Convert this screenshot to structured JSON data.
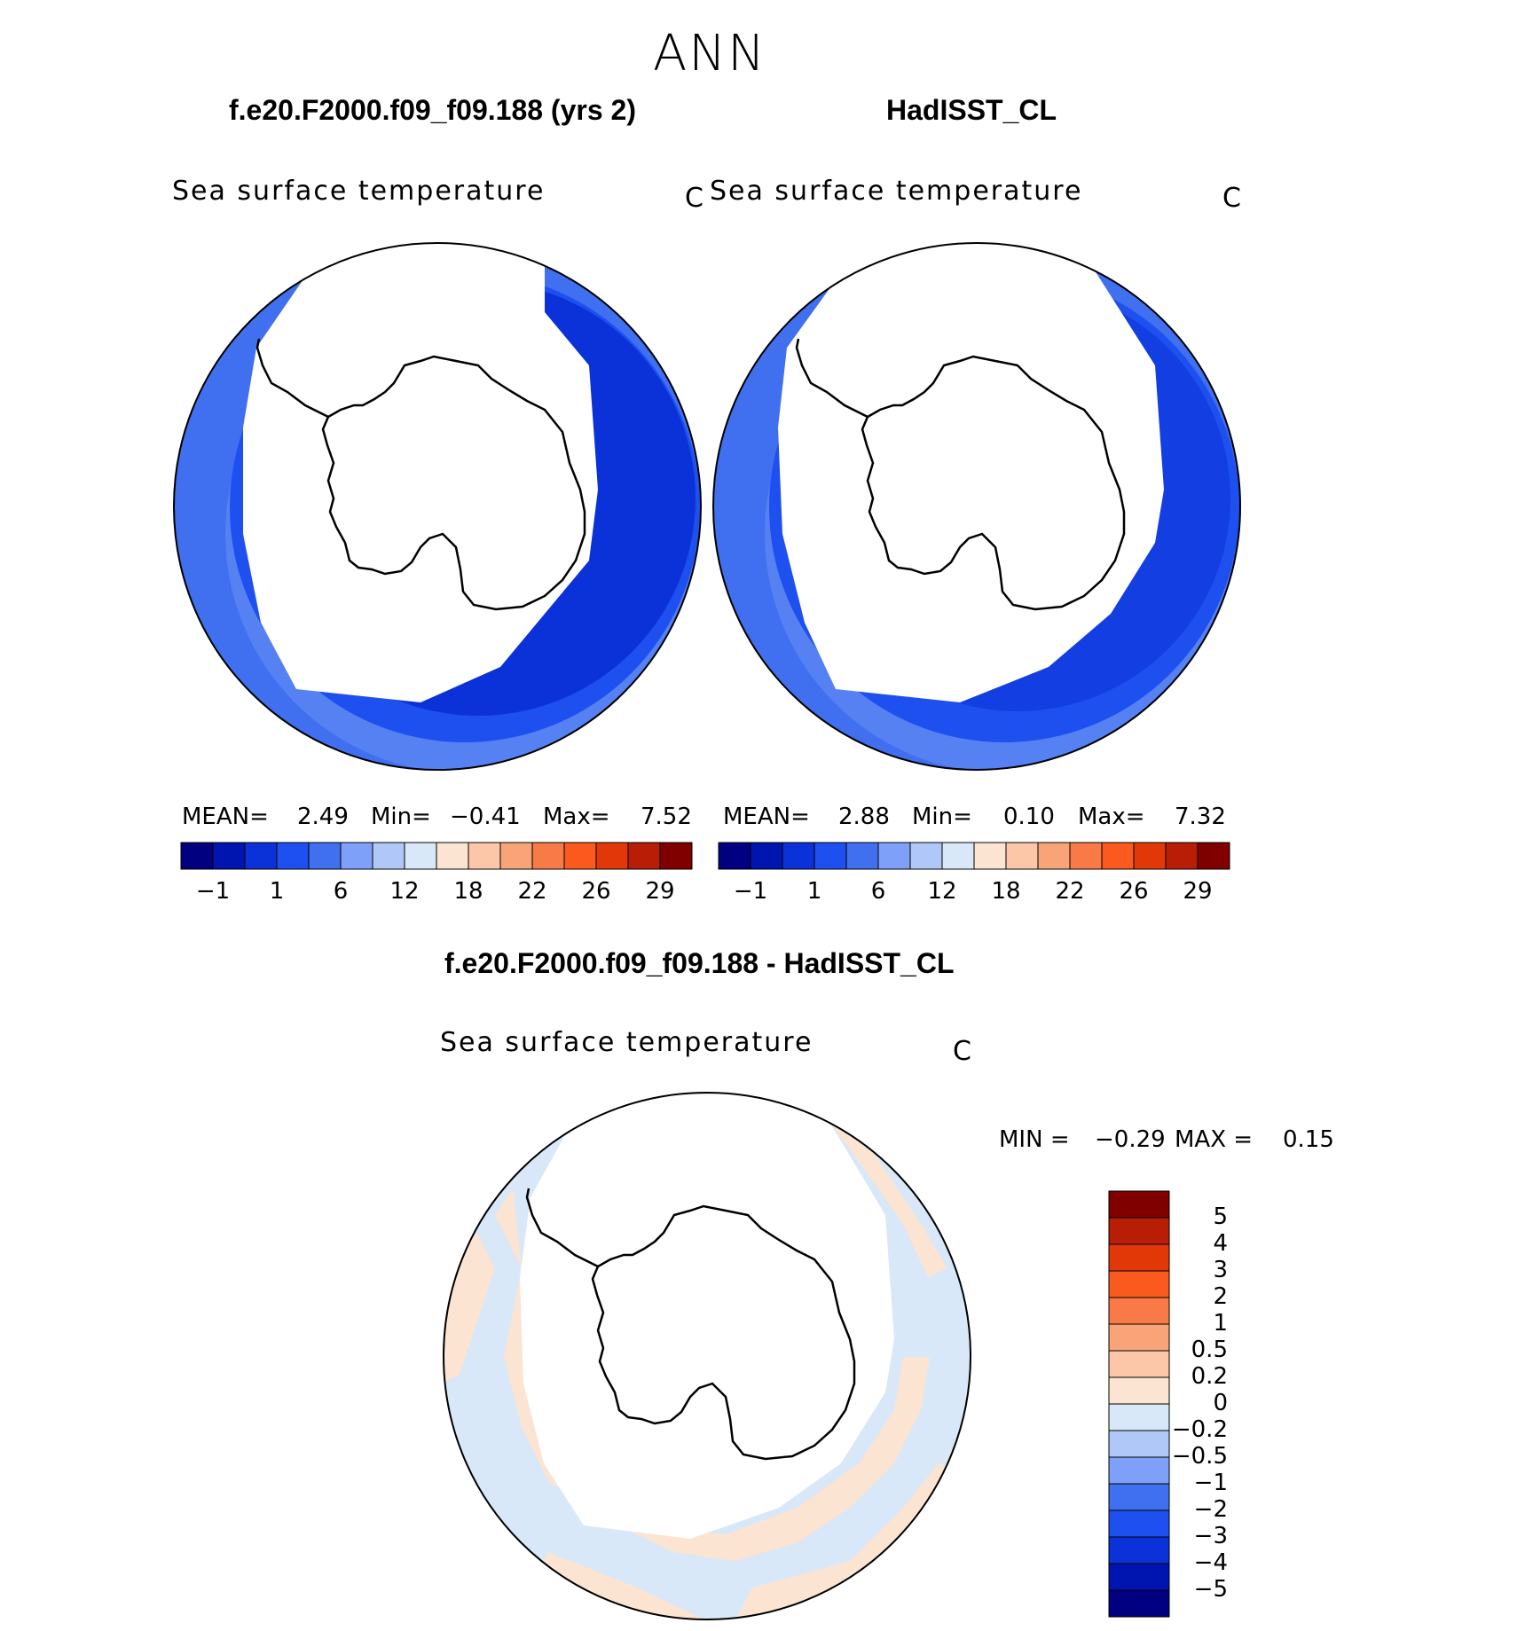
{
  "title": "ANN",
  "panels": [
    {
      "id": "model",
      "title": "f.e20.F2000.f09_f09.188 (yrs 2)",
      "variable": "Sea surface temperature",
      "units": "C",
      "stats": {
        "mean_label": "MEAN=",
        "mean": "2.49",
        "min_label": "Min=",
        "min": "−0.41",
        "max_label": "Max=",
        "max": "7.52"
      }
    },
    {
      "id": "obs",
      "title": "HadISST_CL",
      "variable": "Sea surface temperature",
      "units": "C",
      "stats": {
        "mean_label": "MEAN=",
        "mean": "2.88",
        "min_label": "Min=",
        "min": "0.10",
        "max_label": "Max=",
        "max": "7.32"
      }
    },
    {
      "id": "diff",
      "title": "f.e20.F2000.f09_f09.188 - HadISST_CL",
      "variable": "Sea surface temperature",
      "units": "C",
      "stats": {
        "min_label": "MIN =",
        "min": "−0.29",
        "max_label": "MAX =",
        "max": "0.15"
      }
    }
  ],
  "colorbar_sst": {
    "colors": [
      "#000080",
      "#0015b0",
      "#0a32d8",
      "#1e50f0",
      "#4070f0",
      "#7fa0f8",
      "#b0c8f8",
      "#d8e8f8",
      "#fbe4d2",
      "#fcc6a8",
      "#f8a478",
      "#f87a46",
      "#fa5a1e",
      "#e23808",
      "#b81e06",
      "#800000"
    ],
    "tick_labels": [
      "−1",
      "1",
      "6",
      "12",
      "18",
      "22",
      "26",
      "29"
    ]
  },
  "colorbar_diff": {
    "colors_bottom_to_top": [
      "#000080",
      "#0015b0",
      "#0a32d8",
      "#1e50f0",
      "#4070f0",
      "#7fa0f8",
      "#b0c8f8",
      "#d8e8f8",
      "#fbe4d2",
      "#fcc6a8",
      "#f8a478",
      "#f87a46",
      "#fa5a1e",
      "#e23808",
      "#b81e06",
      "#800000"
    ],
    "tick_labels_top_to_bottom": [
      "5",
      "4",
      "3",
      "2",
      "1",
      "0.5",
      "0.2",
      "0",
      "−0.2",
      "−0.5",
      "−1",
      "−2",
      "−3",
      "−4",
      "−5"
    ]
  },
  "map_colors": {
    "ocean_dark": "#0a32d8",
    "ocean_mid": "#1e50f0",
    "ocean_light": "#4070f0",
    "ocean_pale": "#7fa0f8",
    "diff_neg": "#d8e8f8",
    "diff_pos": "#fbe4d2"
  }
}
